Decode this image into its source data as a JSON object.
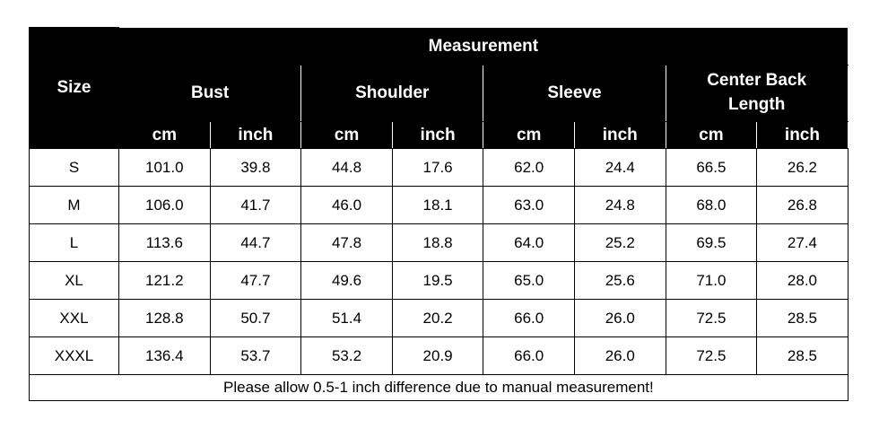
{
  "table": {
    "size_header": "Size",
    "group_header": "Measurement",
    "columns": [
      "Bust",
      "Shoulder",
      "Sleeve",
      "Center Back Length"
    ],
    "units": [
      "cm",
      "inch"
    ],
    "rows": [
      [
        "S",
        "101.0",
        "39.8",
        "44.8",
        "17.6",
        "62.0",
        "24.4",
        "66.5",
        "26.2"
      ],
      [
        "M",
        "106.0",
        "41.7",
        "46.0",
        "18.1",
        "63.0",
        "24.8",
        "68.0",
        "26.8"
      ],
      [
        "L",
        "113.6",
        "44.7",
        "47.8",
        "18.8",
        "64.0",
        "25.2",
        "69.5",
        "27.4"
      ],
      [
        "XL",
        "121.2",
        "47.7",
        "49.6",
        "19.5",
        "65.0",
        "25.6",
        "71.0",
        "28.0"
      ],
      [
        "XXL",
        "128.8",
        "50.7",
        "51.4",
        "20.2",
        "66.0",
        "26.0",
        "72.5",
        "28.5"
      ],
      [
        "XXXL",
        "136.4",
        "53.7",
        "53.2",
        "20.9",
        "66.0",
        "26.0",
        "72.5",
        "28.5"
      ]
    ],
    "note": "Please allow 0.5-1 inch difference due to manual measurement!"
  }
}
